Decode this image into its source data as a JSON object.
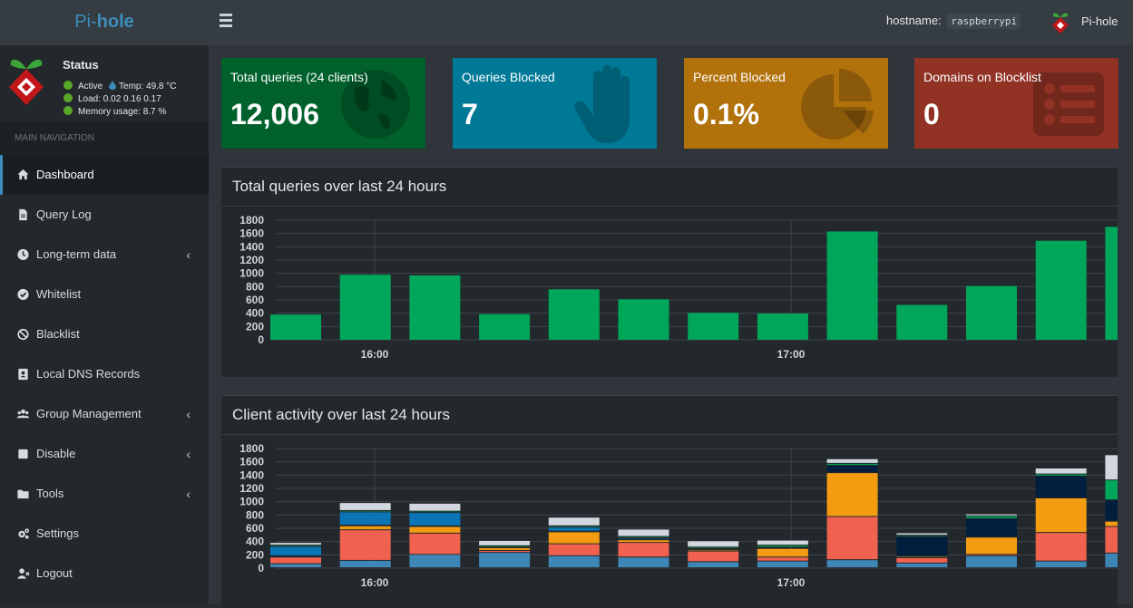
{
  "header": {
    "brand_prefix": "Pi-",
    "brand_suffix": "hole",
    "hostname_label": "hostname:",
    "hostname_value": "raspberrypi",
    "user_label": "Pi-hole"
  },
  "status": {
    "title": "Status",
    "active": "Active",
    "temp": "Temp: 49.8 °C",
    "load": "Load: 0.02 0.16 0.17",
    "memory": "Memory usage: 8.7 %"
  },
  "nav": {
    "section": "MAIN NAVIGATION",
    "items": [
      {
        "label": "Dashboard",
        "icon": "home-icon",
        "active": true
      },
      {
        "label": "Query Log",
        "icon": "file-icon"
      },
      {
        "label": "Long-term data",
        "icon": "clock-icon",
        "chevron": "‹"
      },
      {
        "label": "Whitelist",
        "icon": "check-circle-icon"
      },
      {
        "label": "Blacklist",
        "icon": "ban-icon"
      },
      {
        "label": "Local DNS Records",
        "icon": "address-book-icon"
      },
      {
        "label": "Group Management",
        "icon": "users-icon",
        "chevron": "‹"
      },
      {
        "label": "Disable",
        "icon": "stop-icon",
        "chevron": "‹"
      },
      {
        "label": "Tools",
        "icon": "folder-icon",
        "chevron": "‹"
      },
      {
        "label": "Settings",
        "icon": "gears-icon"
      },
      {
        "label": "Logout",
        "icon": "user-times-icon"
      }
    ]
  },
  "stats": {
    "total_label": "Total queries (24 clients)",
    "total_value": "12,006",
    "total_color": "#00612c",
    "blocked_label": "Queries Blocked",
    "blocked_value": "7",
    "blocked_color": "#007997",
    "percent_label": "Percent Blocked",
    "percent_value": "0.1%",
    "percent_color": "#b1720c",
    "domains_label": "Domains on Blocklist",
    "domains_value": "0",
    "domains_color": "#913225"
  },
  "panels": {
    "queries_title": "Total queries over last 24 hours",
    "clients_title": "Client activity over last 24 hours"
  },
  "chart_data": [
    {
      "type": "bar",
      "title": "Total queries over last 24 hours",
      "x_ticks": [
        "16:00",
        "17:00"
      ],
      "ylim": [
        0,
        1800
      ],
      "y_ticks": [
        0,
        200,
        400,
        600,
        800,
        1000,
        1200,
        1400,
        1600,
        1800
      ],
      "grid": true,
      "color": "#00a65a",
      "values": [
        380,
        980,
        970,
        385,
        760,
        610,
        405,
        395,
        1630,
        525,
        810,
        1490,
        1700
      ]
    },
    {
      "type": "bar",
      "title": "Client activity over last 24 hours",
      "stacked": true,
      "x_ticks": [
        "16:00",
        "17:00"
      ],
      "ylim": [
        0,
        1800
      ],
      "y_ticks": [
        0,
        200,
        400,
        600,
        800,
        1000,
        1200,
        1400,
        1600,
        1800
      ],
      "grid": true,
      "colors": [
        "#3d86b5",
        "#f0614f",
        "#f39c12",
        "#001f3f",
        "#0a74b5",
        "#00a65a",
        "#d2d6de"
      ],
      "series": [
        {
          "values": [
            60,
            110,
            200,
            230,
            180,
            160,
            90,
            100,
            120,
            70,
            180,
            100,
            220
          ]
        },
        {
          "values": [
            100,
            460,
            320,
            30,
            180,
            220,
            160,
            60,
            650,
            80,
            20,
            430,
            400
          ]
        },
        {
          "values": [
            0,
            60,
            100,
            40,
            180,
            40,
            20,
            130,
            660,
            20,
            260,
            520,
            80
          ]
        },
        {
          "values": [
            20,
            10,
            10,
            10,
            10,
            10,
            10,
            10,
            110,
            300,
            280,
            330,
            320
          ]
        },
        {
          "values": [
            140,
            200,
            200,
            0,
            60,
            20,
            10,
            10,
            0,
            0,
            0,
            0,
            0
          ]
        },
        {
          "values": [
            20,
            20,
            20,
            20,
            20,
            20,
            20,
            30,
            30,
            20,
            40,
            30,
            300
          ]
        },
        {
          "values": [
            40,
            120,
            120,
            80,
            130,
            110,
            95,
            75,
            70,
            35,
            30,
            90,
            380
          ]
        }
      ]
    }
  ]
}
